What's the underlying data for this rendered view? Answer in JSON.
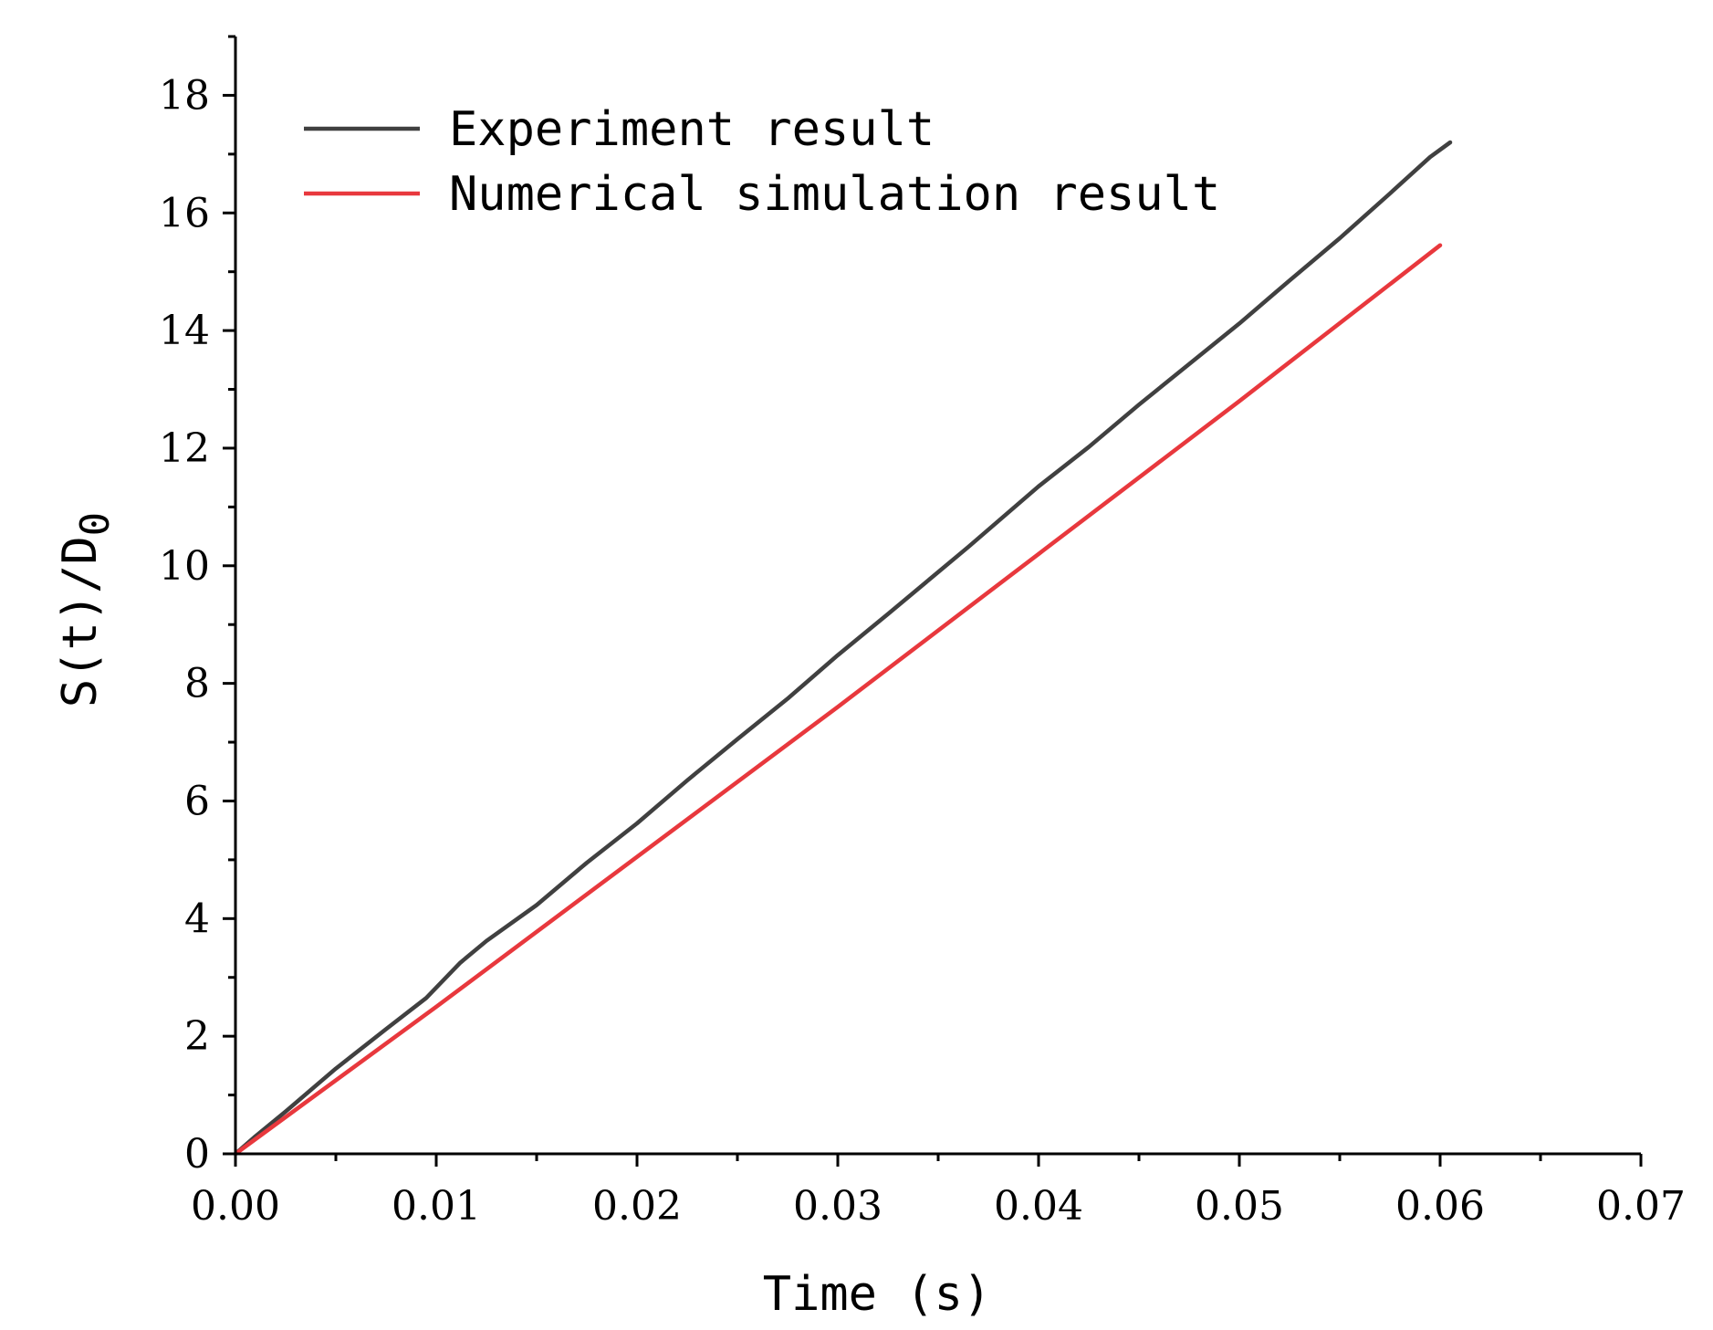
{
  "chart_data": {
    "type": "line",
    "xlabel": "Time (s)",
    "ylabel": "S(t)/D",
    "ylabel_subscript": "0",
    "xlim": [
      0,
      0.07
    ],
    "ylim": [
      0,
      19
    ],
    "x_ticks": [
      "0.00",
      "0.01",
      "0.02",
      "0.03",
      "0.04",
      "0.05",
      "0.06",
      "0.07"
    ],
    "y_ticks": [
      "0",
      "2",
      "4",
      "6",
      "8",
      "10",
      "12",
      "14",
      "16",
      "18"
    ],
    "legend_position": "top-left",
    "grid": false,
    "series": [
      {
        "name": "Experiment result",
        "color": "#404040",
        "x": [
          0.0,
          0.001,
          0.0025,
          0.005,
          0.0075,
          0.0095,
          0.0112,
          0.0125,
          0.015,
          0.0175,
          0.02,
          0.0225,
          0.025,
          0.0275,
          0.03,
          0.0325,
          0.0365,
          0.04,
          0.0425,
          0.045,
          0.05,
          0.0525,
          0.055,
          0.0575,
          0.0595,
          0.0605
        ],
        "values": [
          0.0,
          0.3,
          0.72,
          1.45,
          2.12,
          2.65,
          3.25,
          3.62,
          4.23,
          4.95,
          5.62,
          6.35,
          7.05,
          7.74,
          8.48,
          9.18,
          10.32,
          11.35,
          12.02,
          12.74,
          14.12,
          14.85,
          15.57,
          16.33,
          16.95,
          17.2
        ]
      },
      {
        "name": "Numerical simulation result",
        "color": "#e8383d",
        "x": [
          0.0,
          0.01,
          0.02,
          0.03,
          0.04,
          0.05,
          0.06
        ],
        "values": [
          0.0,
          2.5,
          5.05,
          7.6,
          10.2,
          12.8,
          15.45
        ]
      }
    ]
  }
}
